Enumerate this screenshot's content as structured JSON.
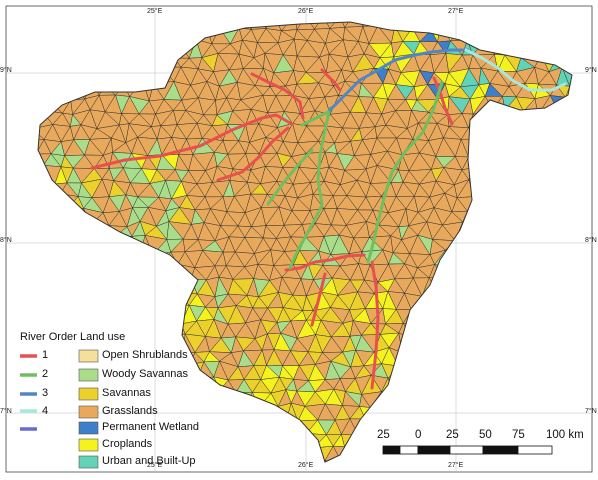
{
  "colors": {
    "grasslands": "#e8a95c",
    "savannas": "#ecd02b",
    "woody_savannas": "#a9dd8a",
    "open_shrublands": "#f6df9c",
    "permanent_wetland": "#3d7fc9",
    "croplands": "#f4f21f",
    "urban": "#63d3b8",
    "river_order_1": "#e8504f",
    "river_order_2": "#6fbf60",
    "river_order_3": "#4f86c4",
    "river_order_4": "#a6e8de",
    "river_order_5": "#6a6ad0",
    "mesh_edge": "#2a2a2a"
  },
  "graticule": {
    "top": [
      "25°E",
      "26°E",
      "27°E"
    ],
    "bottom": [
      "25°E",
      "26°E",
      "27°E"
    ],
    "left": [
      "9°N",
      "8°N",
      "7°N"
    ],
    "right": [
      "9°N",
      "8°N",
      "7°N"
    ]
  },
  "legend": {
    "river_title": "River Order",
    "river_orders": [
      "1",
      "2",
      "3",
      "4",
      ""
    ],
    "landuse_title": "Land use",
    "landuse_classes": [
      {
        "label": "Open Shrublands",
        "color_key": "open_shrublands"
      },
      {
        "label": "Woody Savannas",
        "color_key": "woody_savannas"
      },
      {
        "label": "Savannas",
        "color_key": "savannas"
      },
      {
        "label": "Grasslands",
        "color_key": "grasslands"
      },
      {
        "label": "Permanent Wetland",
        "color_key": "permanent_wetland"
      },
      {
        "label": "Croplands",
        "color_key": "croplands"
      },
      {
        "label": "Urban and Built-Up",
        "color_key": "urban"
      }
    ]
  },
  "scale_bar": {
    "labels": [
      "25",
      "0",
      "25",
      "50",
      "75",
      "100 km"
    ]
  }
}
